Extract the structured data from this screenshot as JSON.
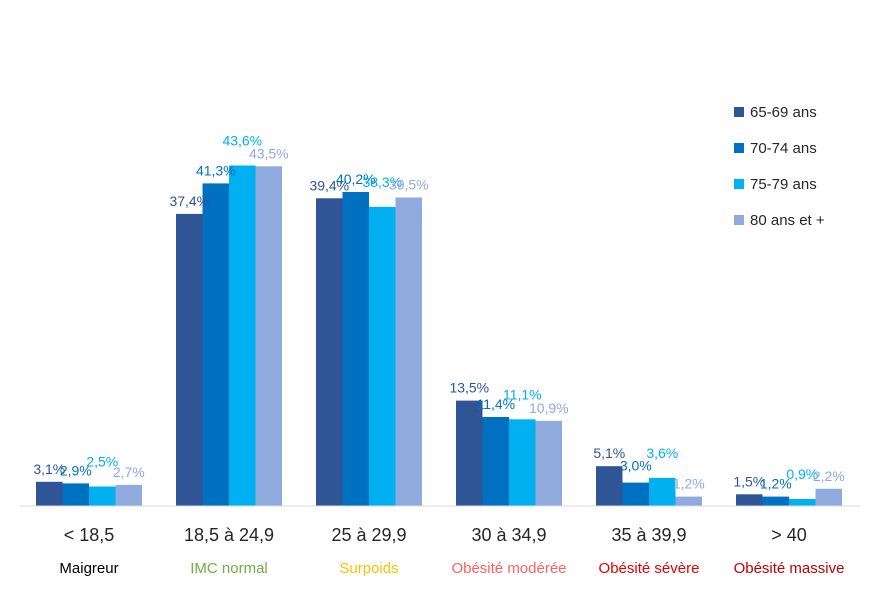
{
  "chart_data": {
    "type": "bar",
    "categories": [
      "< 18,5",
      "18,5 à 24,9",
      "25 à 29,9",
      "30 à 34,9",
      "35 à 39,9",
      "> 40"
    ],
    "category_labels": [
      "Maigreur",
      "IMC normal",
      "Surpoids",
      "Obésité modérée",
      "Obésité sévère",
      "Obésité massive"
    ],
    "category_label_colors": [
      "#000000",
      "#70AD47",
      "#FFC000",
      "#FF6161",
      "#E00000",
      "#C00000"
    ],
    "series": [
      {
        "name": "65-69 ans",
        "color": "#2F5597",
        "values": [
          3.1,
          37.4,
          39.4,
          13.5,
          5.1,
          1.5
        ],
        "labels": [
          "3,1%",
          "37,4%",
          "39,4%",
          "13,5%",
          "5,1%",
          "1,5%"
        ]
      },
      {
        "name": "70-74 ans",
        "color": "#0070C0",
        "values": [
          2.9,
          41.3,
          40.2,
          11.4,
          3.0,
          1.2
        ],
        "labels": [
          "2,9%",
          "41,3%",
          "40,2%",
          "11,4%",
          "3,0%",
          "1,2%"
        ]
      },
      {
        "name": "75-79 ans",
        "color": "#00B0F0",
        "values": [
          2.5,
          43.6,
          38.3,
          11.1,
          3.6,
          0.9
        ],
        "labels": [
          "2,5%",
          "43,6%",
          "38,3%",
          "11,1%",
          "3,6%",
          "0,9%"
        ]
      },
      {
        "name": "80 ans et +",
        "color": "#8FAADC",
        "values": [
          2.7,
          43.5,
          39.5,
          10.9,
          1.2,
          2.2
        ],
        "labels": [
          "2,7%",
          "43,5%",
          "39,5%",
          "10,9%",
          "1,2%",
          "2,2%"
        ]
      }
    ],
    "ylim": [
      0,
      50
    ],
    "legend_position": "right",
    "grid": false
  }
}
